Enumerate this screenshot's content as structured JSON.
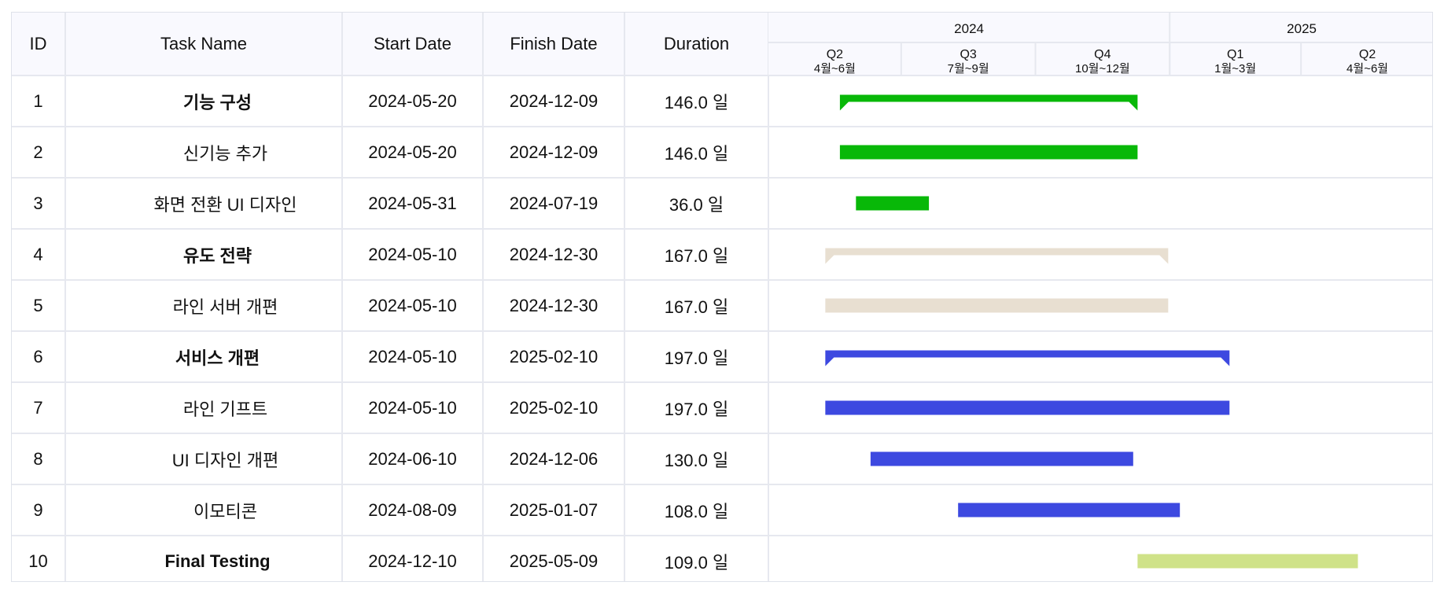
{
  "columns": {
    "id": "ID",
    "name": "Task Name",
    "start": "Start Date",
    "finish": "Finish Date",
    "duration": "Duration"
  },
  "timeline": {
    "years": [
      {
        "label": "2024",
        "start": "2024-04-01",
        "end": "2024-12-31"
      },
      {
        "label": "2025",
        "start": "2025-01-01",
        "end": "2025-06-30"
      }
    ],
    "quarters": [
      {
        "label": "Q2",
        "months": "4월~6월",
        "start": "2024-04-01",
        "end": "2024-06-30"
      },
      {
        "label": "Q3",
        "months": "7월~9월",
        "start": "2024-07-01",
        "end": "2024-09-30"
      },
      {
        "label": "Q4",
        "months": "10월~12월",
        "start": "2024-10-01",
        "end": "2024-12-31"
      },
      {
        "label": "Q1",
        "months": "1월~3월",
        "start": "2025-01-01",
        "end": "2025-03-31"
      },
      {
        "label": "Q2",
        "months": "4월~6월",
        "start": "2025-04-01",
        "end": "2025-06-30"
      }
    ]
  },
  "chart_data": {
    "type": "gantt",
    "tasks": [
      {
        "id": "1",
        "name": "기능 구성",
        "start": "2024-05-20",
        "finish": "2024-12-09",
        "duration": "146.0 일",
        "summary": true,
        "color": "#08b808"
      },
      {
        "id": "2",
        "name": "신기능 추가",
        "start": "2024-05-20",
        "finish": "2024-12-09",
        "duration": "146.0 일",
        "summary": false,
        "color": "#08b808"
      },
      {
        "id": "3",
        "name": "화면 전환 UI 디자인",
        "start": "2024-05-31",
        "finish": "2024-07-19",
        "duration": "36.0 일",
        "summary": false,
        "color": "#08b808"
      },
      {
        "id": "4",
        "name": "유도 전략",
        "start": "2024-05-10",
        "finish": "2024-12-30",
        "duration": "167.0 일",
        "summary": true,
        "color": "#e8dfd1"
      },
      {
        "id": "5",
        "name": "라인 서버 개편",
        "start": "2024-05-10",
        "finish": "2024-12-30",
        "duration": "167.0 일",
        "summary": false,
        "color": "#e8dfd1"
      },
      {
        "id": "6",
        "name": "서비스 개편",
        "start": "2024-05-10",
        "finish": "2025-02-10",
        "duration": "197.0 일",
        "summary": true,
        "color": "#3d49e0"
      },
      {
        "id": "7",
        "name": "라인 기프트",
        "start": "2024-05-10",
        "finish": "2025-02-10",
        "duration": "197.0 일",
        "summary": false,
        "color": "#3d49e0"
      },
      {
        "id": "8",
        "name": "UI 디자인 개편",
        "start": "2024-06-10",
        "finish": "2024-12-06",
        "duration": "130.0 일",
        "summary": false,
        "color": "#3d49e0"
      },
      {
        "id": "9",
        "name": "이모티콘",
        "start": "2024-08-09",
        "finish": "2025-01-07",
        "duration": "108.0 일",
        "summary": false,
        "color": "#3d49e0"
      },
      {
        "id": "10",
        "name": "Final Testing",
        "start": "2024-12-10",
        "finish": "2025-05-09",
        "duration": "109.0 일",
        "summary": true,
        "color": "#cfe288"
      }
    ]
  }
}
